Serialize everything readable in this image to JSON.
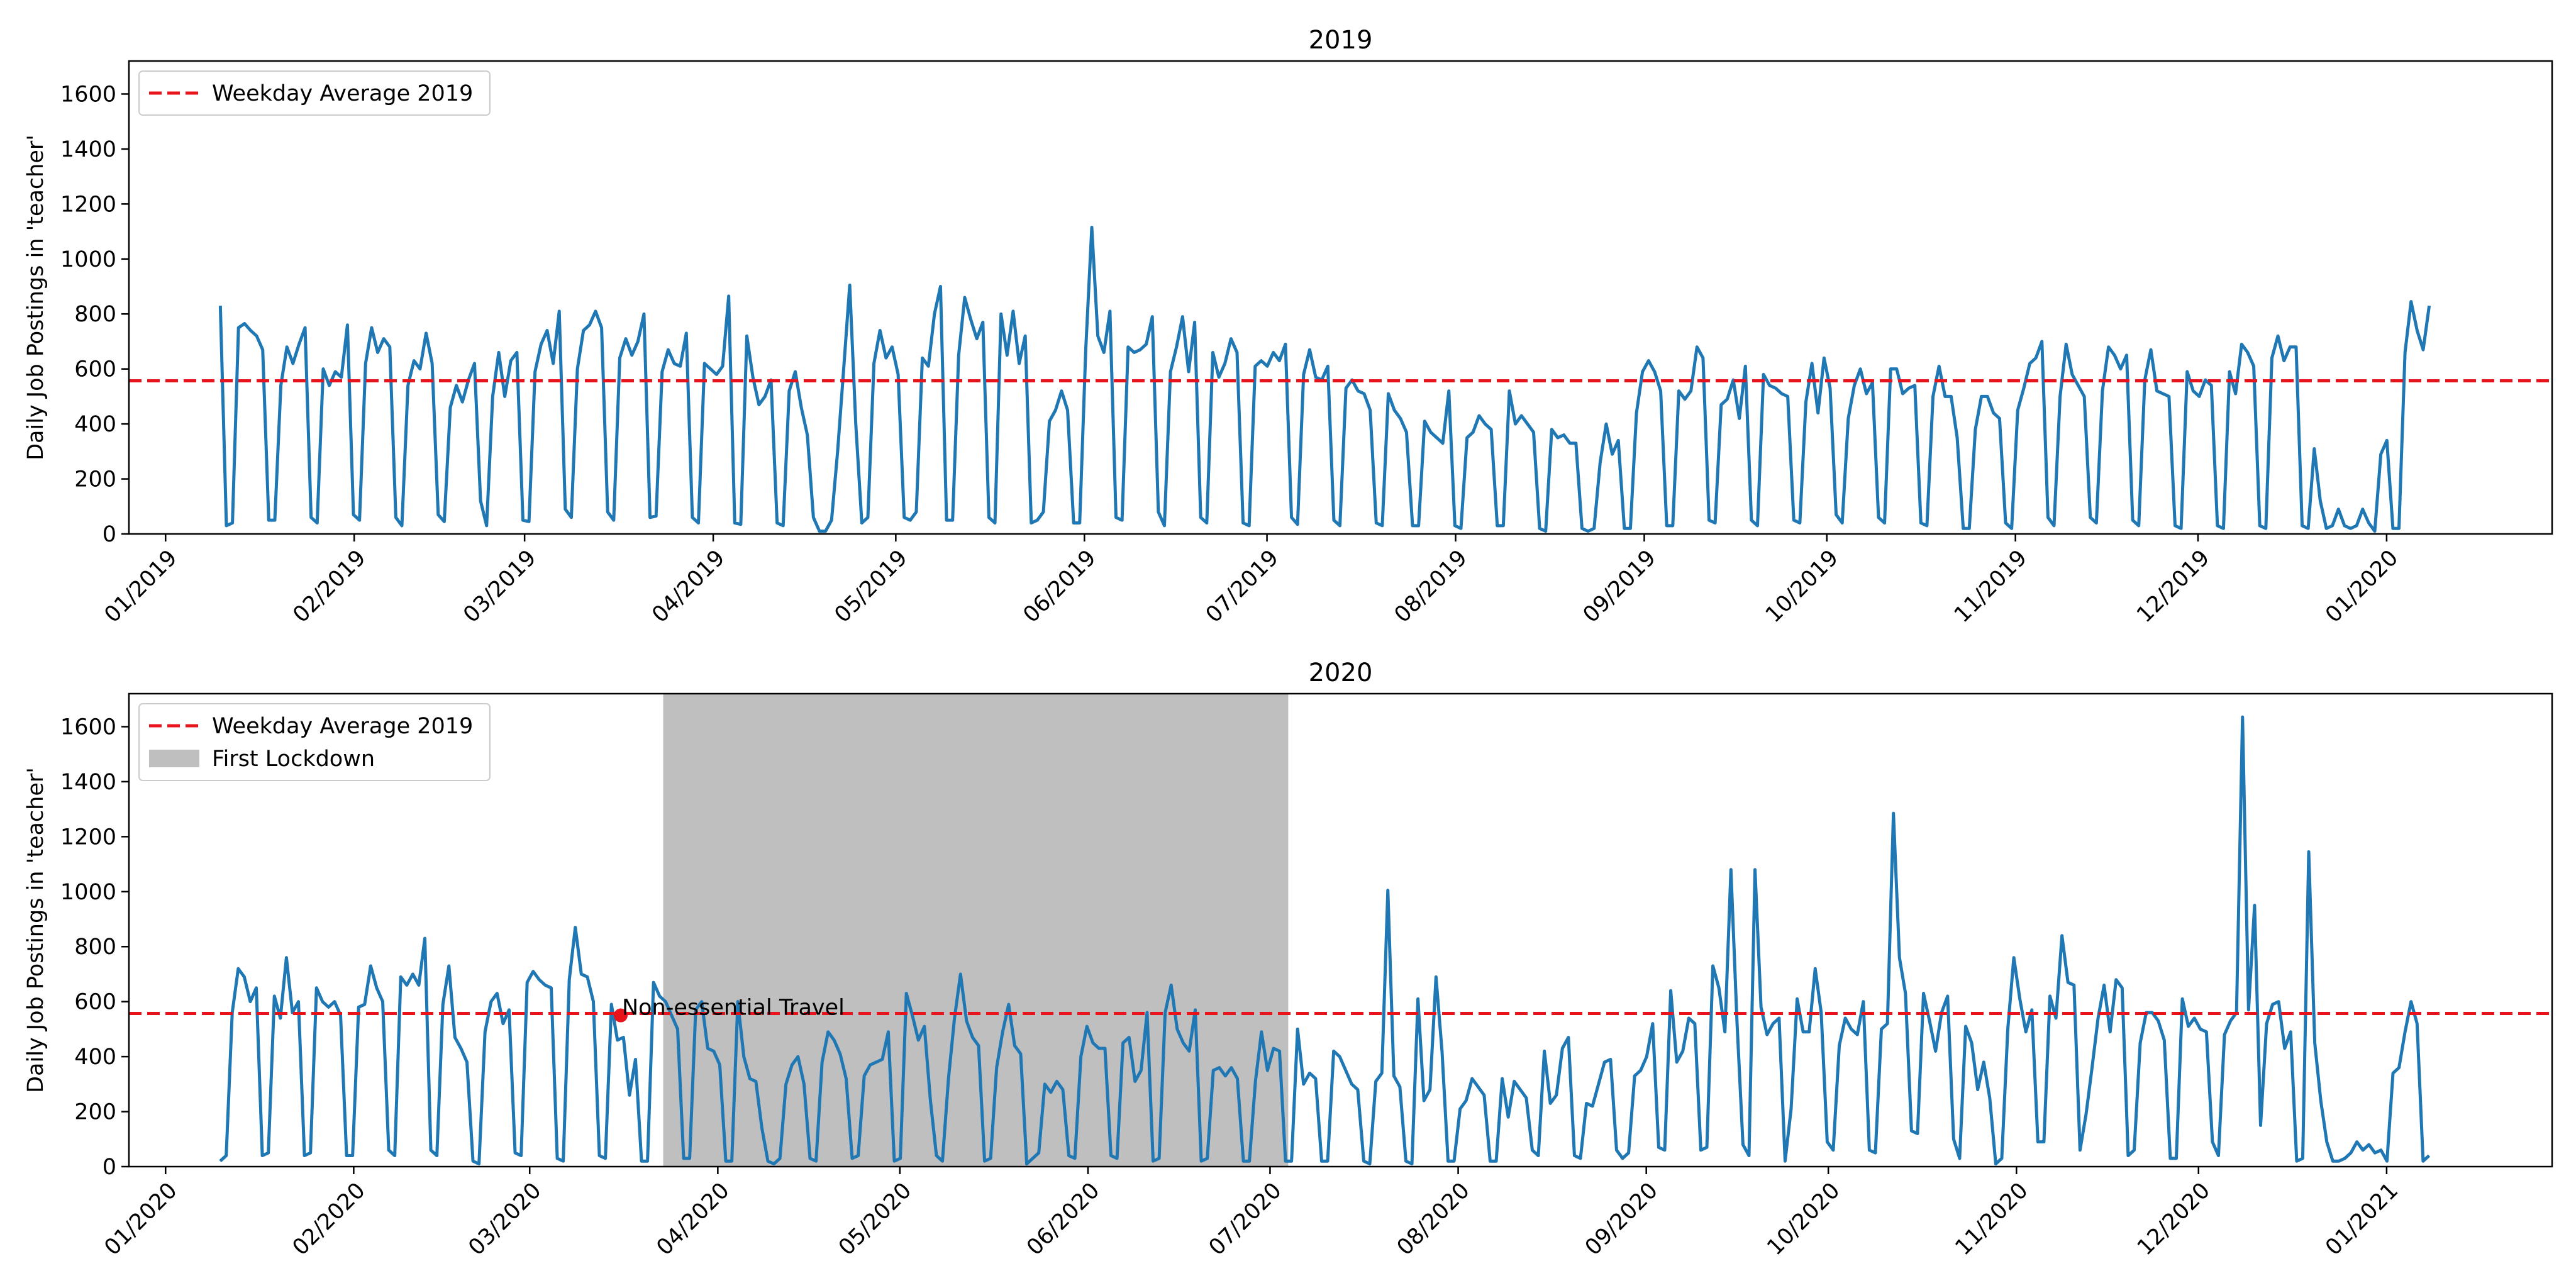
{
  "chart_data": [
    {
      "type": "line",
      "title": "2019",
      "ylabel": "Daily Job Postings in 'teacher'",
      "xlabel": "",
      "ylim": [
        0,
        1720
      ],
      "yticks": [
        0,
        200,
        400,
        600,
        800,
        1000,
        1200,
        1400,
        1600
      ],
      "xticks": [
        "01/2019",
        "02/2019",
        "03/2019",
        "04/2019",
        "05/2019",
        "06/2019",
        "07/2019",
        "08/2019",
        "09/2019",
        "10/2019",
        "11/2019",
        "12/2019",
        "01/2020"
      ],
      "x_start_date": "2019-01-10",
      "x_end_date": "2020-01-08",
      "grid": false,
      "legend_position": "upper-left",
      "legend": [
        {
          "label": "Weekday Average 2019",
          "kind": "dashed-line",
          "color": "#e8141c"
        }
      ],
      "reference_line": {
        "value": 557,
        "color": "#e8141c",
        "style": "dashed"
      },
      "series": [
        {
          "color": "#1f77b4",
          "values": [
            830,
            30,
            40,
            750,
            765,
            740,
            720,
            670,
            50,
            50,
            540,
            680,
            620,
            690,
            750,
            60,
            40,
            600,
            540,
            590,
            570,
            760,
            70,
            50,
            620,
            750,
            660,
            710,
            680,
            60,
            30,
            540,
            630,
            600,
            730,
            620,
            70,
            45,
            460,
            540,
            480,
            560,
            620,
            120,
            30,
            500,
            660,
            500,
            630,
            660,
            50,
            45,
            590,
            690,
            740,
            620,
            810,
            90,
            60,
            600,
            740,
            760,
            810,
            750,
            80,
            50,
            640,
            710,
            650,
            700,
            800,
            60,
            65,
            590,
            670,
            620,
            610,
            730,
            60,
            40,
            620,
            600,
            580,
            610,
            865,
            40,
            35,
            720,
            570,
            470,
            500,
            560,
            40,
            30,
            520,
            590,
            460,
            360,
            60,
            10,
            10,
            50,
            300,
            600,
            905,
            400,
            40,
            60,
            620,
            740,
            640,
            680,
            580,
            60,
            50,
            80,
            640,
            610,
            800,
            900,
            50,
            50,
            650,
            860,
            780,
            710,
            770,
            60,
            40,
            800,
            650,
            810,
            620,
            720,
            40,
            50,
            80,
            410,
            450,
            520,
            450,
            40,
            40,
            670,
            1115,
            720,
            660,
            810,
            60,
            50,
            680,
            660,
            670,
            690,
            790,
            80,
            30,
            590,
            680,
            790,
            590,
            770,
            60,
            40,
            660,
            570,
            620,
            710,
            660,
            40,
            30,
            610,
            630,
            610,
            660,
            630,
            690,
            60,
            35,
            580,
            670,
            570,
            560,
            610,
            50,
            30,
            530,
            560,
            520,
            510,
            450,
            40,
            30,
            510,
            450,
            420,
            370,
            30,
            30,
            410,
            370,
            350,
            330,
            520,
            30,
            20,
            350,
            370,
            430,
            400,
            380,
            30,
            30,
            520,
            400,
            430,
            400,
            370,
            20,
            10,
            380,
            350,
            360,
            330,
            330,
            20,
            10,
            20,
            260,
            400,
            290,
            340,
            20,
            20,
            440,
            590,
            630,
            590,
            520,
            30,
            30,
            520,
            490,
            520,
            680,
            640,
            50,
            40,
            470,
            490,
            560,
            420,
            610,
            50,
            30,
            580,
            540,
            530,
            510,
            500,
            50,
            40,
            480,
            620,
            440,
            640,
            530,
            70,
            40,
            420,
            540,
            600,
            510,
            550,
            60,
            40,
            600,
            600,
            510,
            530,
            540,
            40,
            30,
            500,
            610,
            500,
            500,
            350,
            20,
            20,
            380,
            500,
            500,
            440,
            420,
            40,
            20,
            450,
            530,
            620,
            640,
            700,
            60,
            30,
            500,
            690,
            580,
            540,
            500,
            60,
            40,
            520,
            680,
            650,
            600,
            650,
            50,
            30,
            560,
            670,
            520,
            510,
            500,
            30,
            20,
            590,
            520,
            500,
            560,
            540,
            30,
            20,
            590,
            510,
            690,
            660,
            610,
            30,
            20,
            640,
            720,
            630,
            680,
            680,
            30,
            20,
            310,
            120,
            20,
            30,
            90,
            30,
            20,
            30,
            90,
            40,
            10,
            290,
            340,
            20,
            20,
            660,
            845,
            740,
            670,
            830
          ]
        }
      ]
    },
    {
      "type": "line",
      "title": "2020",
      "ylabel": "Daily Job Postings in 'teacher'",
      "xlabel": "",
      "ylim": [
        0,
        1720
      ],
      "yticks": [
        0,
        200,
        400,
        600,
        800,
        1000,
        1200,
        1400,
        1600
      ],
      "xticks": [
        "01/2020",
        "02/2020",
        "03/2020",
        "04/2020",
        "05/2020",
        "06/2020",
        "07/2020",
        "08/2020",
        "09/2020",
        "10/2020",
        "11/2020",
        "12/2020",
        "01/2021"
      ],
      "x_start_date": "2020-01-10",
      "x_end_date": "2021-01-08",
      "grid": false,
      "legend_position": "upper-left",
      "legend": [
        {
          "label": "Weekday Average 2019",
          "kind": "dashed-line",
          "color": "#e8141c"
        },
        {
          "label": "First Lockdown",
          "kind": "patch",
          "color": "#bfbfbf"
        }
      ],
      "reference_line": {
        "value": 557,
        "color": "#e8141c",
        "style": "dashed"
      },
      "shaded_region": {
        "label": "First Lockdown",
        "start": "2020-03-23",
        "end": "2020-07-04",
        "color": "#bfbfbf"
      },
      "annotation": {
        "text": "Non-essential Travel",
        "date": "2020-03-16",
        "value": 550,
        "color": "#e8141c"
      },
      "series": [
        {
          "color": "#1f77b4",
          "values": [
            20,
            40,
            560,
            720,
            690,
            600,
            650,
            40,
            50,
            620,
            540,
            760,
            560,
            600,
            40,
            50,
            650,
            600,
            580,
            600,
            550,
            40,
            40,
            580,
            590,
            730,
            650,
            600,
            60,
            40,
            690,
            660,
            700,
            660,
            830,
            60,
            40,
            590,
            730,
            470,
            430,
            380,
            20,
            10,
            490,
            600,
            630,
            520,
            570,
            50,
            40,
            670,
            710,
            680,
            660,
            650,
            30,
            20,
            680,
            870,
            700,
            690,
            600,
            40,
            30,
            590,
            460,
            470,
            260,
            390,
            20,
            20,
            670,
            620,
            600,
            550,
            500,
            30,
            30,
            570,
            600,
            430,
            420,
            370,
            20,
            20,
            600,
            400,
            320,
            310,
            140,
            20,
            10,
            30,
            300,
            370,
            400,
            300,
            30,
            20,
            380,
            490,
            460,
            410,
            320,
            30,
            40,
            330,
            370,
            380,
            390,
            490,
            20,
            30,
            630,
            550,
            460,
            510,
            240,
            40,
            20,
            320,
            540,
            700,
            530,
            470,
            440,
            20,
            30,
            360,
            490,
            590,
            440,
            410,
            10,
            30,
            50,
            300,
            270,
            310,
            280,
            40,
            30,
            400,
            510,
            450,
            430,
            430,
            40,
            30,
            450,
            470,
            310,
            350,
            560,
            20,
            30,
            560,
            660,
            500,
            450,
            420,
            570,
            20,
            30,
            350,
            360,
            330,
            360,
            320,
            20,
            20,
            310,
            490,
            350,
            430,
            420,
            20,
            20,
            500,
            300,
            340,
            320,
            20,
            20,
            420,
            400,
            350,
            300,
            280,
            20,
            10,
            310,
            340,
            1005,
            330,
            290,
            20,
            10,
            610,
            240,
            280,
            690,
            420,
            20,
            20,
            210,
            240,
            320,
            290,
            260,
            20,
            20,
            320,
            180,
            310,
            280,
            250,
            60,
            40,
            420,
            230,
            260,
            430,
            470,
            40,
            30,
            230,
            220,
            300,
            380,
            390,
            60,
            30,
            50,
            330,
            350,
            400,
            520,
            70,
            60,
            640,
            380,
            420,
            540,
            520,
            60,
            70,
            730,
            650,
            490,
            1080,
            530,
            80,
            40,
            1080,
            580,
            480,
            520,
            540,
            20,
            210,
            610,
            490,
            490,
            720,
            560,
            90,
            60,
            440,
            540,
            500,
            480,
            600,
            60,
            50,
            500,
            520,
            1285,
            760,
            630,
            130,
            120,
            630,
            530,
            420,
            560,
            620,
            100,
            30,
            510,
            450,
            280,
            380,
            250,
            10,
            30,
            500,
            760,
            610,
            490,
            570,
            90,
            90,
            620,
            540,
            840,
            670,
            660,
            60,
            190,
            360,
            540,
            660,
            490,
            680,
            650,
            40,
            60,
            450,
            560,
            560,
            530,
            460,
            30,
            30,
            610,
            510,
            540,
            500,
            490,
            90,
            40,
            480,
            530,
            560,
            1635,
            570,
            950,
            150,
            520,
            590,
            600,
            430,
            490,
            20,
            30,
            1145,
            450,
            240,
            90,
            20,
            20,
            30,
            50,
            90,
            60,
            80,
            50,
            60,
            20,
            340,
            360,
            490,
            600,
            520,
            20,
            40
          ]
        }
      ]
    }
  ]
}
